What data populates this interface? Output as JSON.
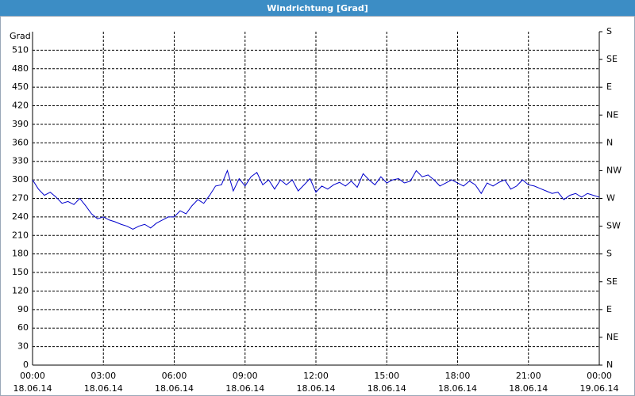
{
  "chart_data": {
    "type": "line",
    "title": "Windrichtung [Grad]",
    "y_label": "Grad",
    "x": [
      0,
      0.25,
      0.5,
      0.75,
      1,
      1.25,
      1.5,
      1.75,
      2,
      2.25,
      2.5,
      2.75,
      3,
      3.25,
      3.5,
      3.75,
      4,
      4.25,
      4.5,
      4.75,
      5,
      5.25,
      5.5,
      5.75,
      6,
      6.25,
      6.5,
      6.75,
      7,
      7.25,
      7.5,
      7.75,
      8,
      8.25,
      8.5,
      8.75,
      9,
      9.25,
      9.5,
      9.75,
      10,
      10.25,
      10.5,
      10.75,
      11,
      11.25,
      11.5,
      11.75,
      12,
      12.25,
      12.5,
      12.75,
      13,
      13.25,
      13.5,
      13.75,
      14,
      14.25,
      14.5,
      14.75,
      15,
      15.25,
      15.5,
      15.75,
      16,
      16.25,
      16.5,
      16.75,
      17,
      17.25,
      17.5,
      17.75,
      18,
      18.25,
      18.5,
      18.75,
      19,
      19.25,
      19.5,
      19.75,
      20,
      20.25,
      20.5,
      20.75,
      21,
      21.25,
      21.5,
      21.75,
      22,
      22.25,
      22.5,
      22.75,
      23,
      23.25,
      23.5,
      23.75,
      24
    ],
    "series": [
      {
        "name": "Windrichtung",
        "color": "#0000cc",
        "values": [
          300,
          285,
          275,
          280,
          272,
          262,
          265,
          260,
          270,
          258,
          245,
          237,
          240,
          235,
          232,
          228,
          225,
          220,
          225,
          228,
          222,
          230,
          235,
          240,
          240,
          250,
          245,
          258,
          268,
          262,
          275,
          290,
          292,
          315,
          282,
          302,
          290,
          305,
          312,
          292,
          300,
          285,
          300,
          292,
          300,
          282,
          292,
          302,
          280,
          290,
          285,
          292,
          296,
          290,
          298,
          288,
          310,
          300,
          292,
          305,
          295,
          300,
          302,
          295,
          298,
          315,
          305,
          308,
          300,
          290,
          295,
          300,
          295,
          290,
          298,
          292,
          278,
          295,
          290,
          296,
          300,
          285,
          290,
          300,
          292,
          290,
          286,
          282,
          278,
          280,
          268,
          275,
          278,
          272,
          278,
          275,
          272
        ]
      }
    ],
    "xlim": [
      0,
      24
    ],
    "xticks": [
      {
        "value": 0,
        "label": "00:00\n18.06.14"
      },
      {
        "value": 3,
        "label": "03:00\n18.06.14"
      },
      {
        "value": 6,
        "label": "06:00\n18.06.14"
      },
      {
        "value": 9,
        "label": "09:00\n18.06.14"
      },
      {
        "value": 12,
        "label": "12:00\n18.06.14"
      },
      {
        "value": 15,
        "label": "15:00\n18.06.14"
      },
      {
        "value": 18,
        "label": "18:00\n18.06.14"
      },
      {
        "value": 21,
        "label": "21:00\n18.06.14"
      },
      {
        "value": 24,
        "label": "00:00\n19.06.14"
      }
    ],
    "ylim": [
      0,
      540
    ],
    "yticks": [
      0,
      30,
      60,
      90,
      120,
      150,
      180,
      210,
      240,
      270,
      300,
      330,
      360,
      390,
      420,
      450,
      480,
      510
    ],
    "y2lim": [
      0,
      540
    ],
    "y2ticks": [
      {
        "value": 0,
        "label": "N"
      },
      {
        "value": 45,
        "label": "NE"
      },
      {
        "value": 90,
        "label": "E"
      },
      {
        "value": 135,
        "label": "SE"
      },
      {
        "value": 180,
        "label": "S"
      },
      {
        "value": 225,
        "label": "SW"
      },
      {
        "value": 270,
        "label": "W"
      },
      {
        "value": 315,
        "label": "NW"
      },
      {
        "value": 360,
        "label": "N"
      },
      {
        "value": 405,
        "label": "NE"
      },
      {
        "value": 450,
        "label": "E"
      },
      {
        "value": 495,
        "label": "SE"
      },
      {
        "value": 540,
        "label": "S"
      }
    ],
    "grid": true
  }
}
